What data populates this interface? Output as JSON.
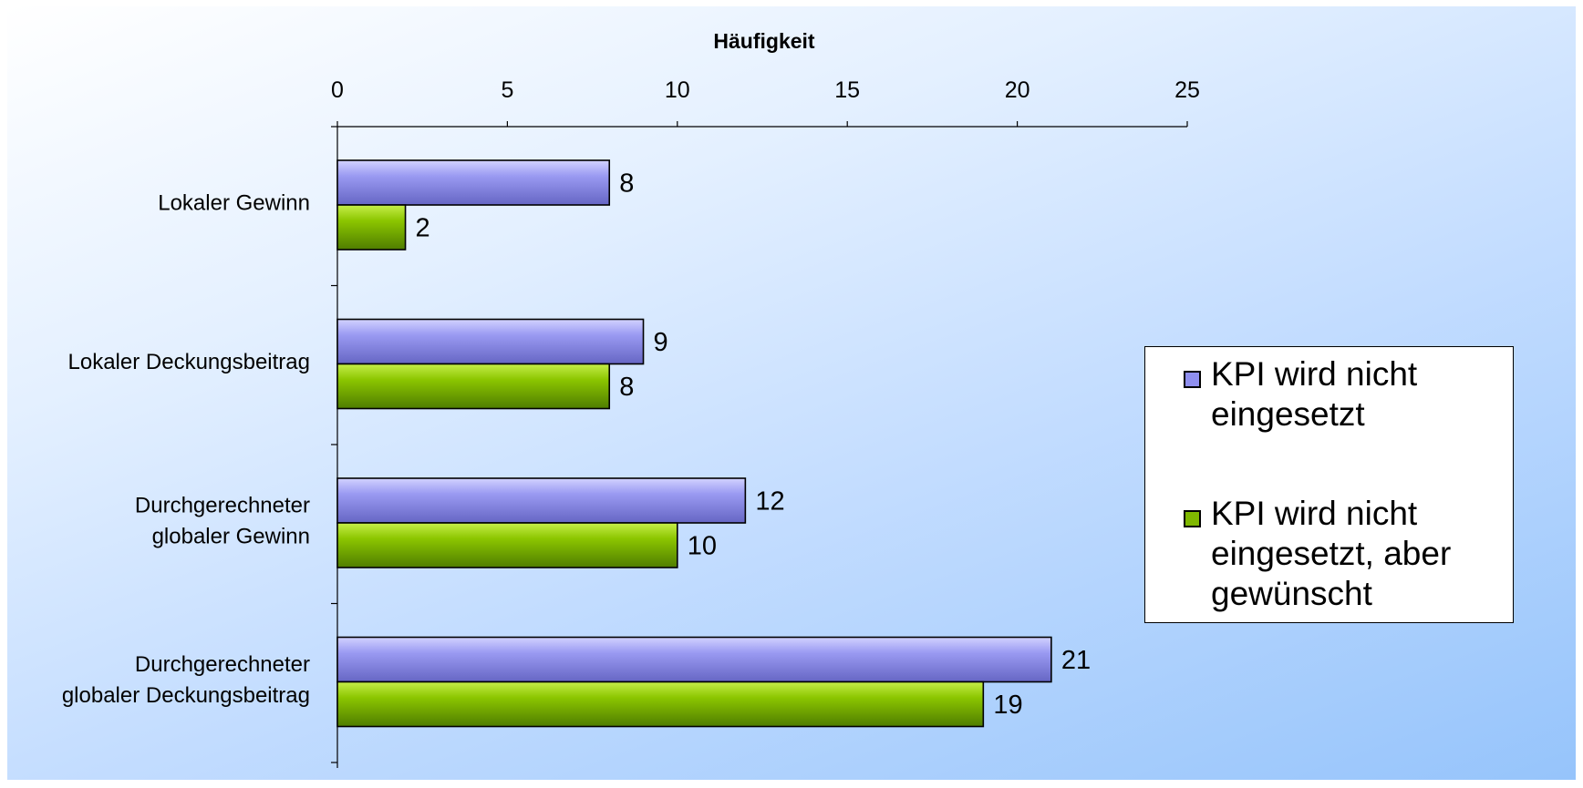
{
  "chart_data": {
    "type": "bar",
    "orientation": "horizontal",
    "title": "",
    "xlabel": "Häufigkeit",
    "ylabel": "",
    "xlim": [
      0,
      25
    ],
    "xticks": [
      0,
      5,
      10,
      15,
      20,
      25
    ],
    "x_axis_position": "top",
    "grid": false,
    "legend_position": "right",
    "categories": [
      "Lokaler Gewinn",
      "Lokaler Deckungsbeitrag",
      "Durchgerechneter globaler Gewinn",
      "Durchgerechneter globaler Deckungsbeitrag"
    ],
    "category_lines": [
      [
        "Lokaler Gewinn"
      ],
      [
        "Lokaler Deckungsbeitrag"
      ],
      [
        "Durchgerechneter",
        "globaler Gewinn"
      ],
      [
        "Durchgerechneter",
        "globaler Deckungsbeitrag"
      ]
    ],
    "series": [
      {
        "name": "KPI wird nicht eingesetzt",
        "values": [
          8,
          9,
          12,
          21
        ],
        "color": "#8F8FEF"
      },
      {
        "name": "KPI wird nicht eingesetzt, aber gewünscht",
        "values": [
          2,
          8,
          10,
          19
        ],
        "color": "#7FB800"
      }
    ]
  },
  "legend": {
    "items": [
      {
        "lines": [
          "KPI wird nicht",
          "eingesetzt"
        ],
        "color": "#8F8FEF"
      },
      {
        "lines": [
          "KPI wird nicht",
          "eingesetzt, aber",
          "gewünscht"
        ],
        "color": "#7FB800"
      }
    ]
  }
}
